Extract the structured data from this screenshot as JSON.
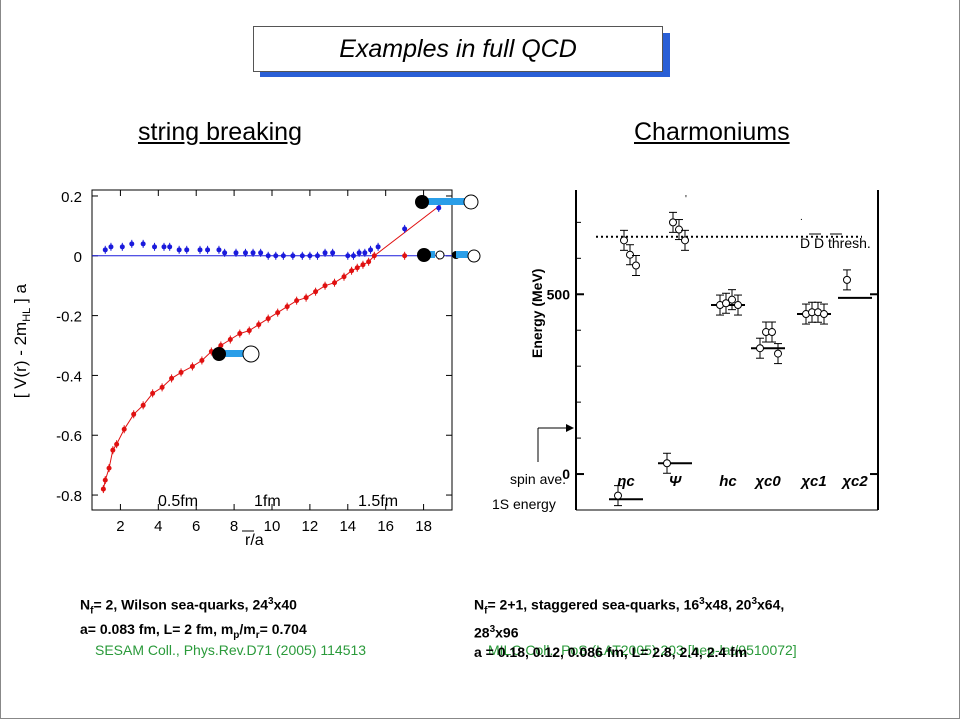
{
  "slide": {
    "title": "Examples in full QCD",
    "left_heading": "string breaking",
    "right_heading": "Charmoniums"
  },
  "left": {
    "ylabel": "[ V(r) - 2m",
    "ylabel_sub": "HL",
    "ylabel_end": " ] a",
    "xlabel": "r/a",
    "distance_marks": [
      "0.5fm",
      "1fm",
      "1.5fm"
    ],
    "note_line1_a": "N",
    "note_line1_sub": "f",
    "note_line1_b": "= 2, Wilson sea-quarks, 24",
    "note_line1_sup": "3",
    "note_line1_c": "x40",
    "note_line2_a": "a= 0.083 fm,  L= 2 fm, m",
    "note_line2_sub1": "p",
    "note_line2_b": "/m",
    "note_line2_sub2": "r",
    "note_line2_c": "= 0.704",
    "citation": "SESAM Coll., Phys.Rev.D71 (2005) 114513"
  },
  "right": {
    "ylabel": "Energy (MeV)",
    "threshold_label": "D D thresh.",
    "spin_ave_line1": "spin ave.",
    "spin_ave_line2": "1S energy",
    "note_line1_a": "N",
    "note_line1_sub": "f",
    "note_line1_b": "= 2+1, staggered sea-quarks, 16",
    "note_line1_sup1": "3",
    "note_line1_c": "x48, 20",
    "note_line1_sup2": "3",
    "note_line1_d": "x64,",
    "note_line2_a": "28",
    "note_line2_sup": "3",
    "note_line2_b": "x96",
    "note_line3": "a = 0.18, 0.12, 0.086 fm,  L= 2.8, 2.4, 2.4 fm",
    "citation": "MILC Coll., PoS (LAT2005) 203 [hep-lat/0510072]"
  },
  "chart_data": [
    {
      "type": "scatter",
      "title": "string breaking",
      "xlabel": "r/a",
      "ylabel": "[ V(r) - 2m_HL ] a",
      "xlim": [
        0.5,
        19.5
      ],
      "ylim": [
        -0.85,
        0.22
      ],
      "xticks": [
        2,
        4,
        6,
        8,
        10,
        12,
        14,
        16,
        18
      ],
      "yticks": [
        0.2,
        0,
        -0.2,
        -0.4,
        -0.6,
        -0.8
      ],
      "grid": false,
      "series": [
        {
          "color": "#1a1adc",
          "x": [
            1.2,
            1.5,
            2.1,
            2.6,
            3.2,
            3.8,
            4.3,
            4.6,
            5.1,
            5.5,
            6.2,
            6.6,
            7.2,
            7.5,
            8.1,
            8.6,
            9.0,
            9.4,
            9.8,
            10.2,
            10.6,
            11.1,
            11.6,
            12.0,
            12.4,
            12.8,
            13.2,
            14.0,
            14.3,
            14.6,
            14.9,
            15.2,
            15.6,
            17.0,
            18.8
          ],
          "y": [
            0.02,
            0.03,
            0.03,
            0.04,
            0.04,
            0.03,
            0.03,
            0.03,
            0.02,
            0.02,
            0.02,
            0.02,
            0.02,
            0.01,
            0.01,
            0.01,
            0.01,
            0.01,
            0.0,
            0.0,
            0.0,
            0.0,
            0.0,
            0.0,
            0.0,
            0.01,
            0.01,
            0.0,
            0.0,
            0.01,
            0.01,
            0.02,
            0.03,
            0.09,
            0.16
          ]
        },
        {
          "color": "#e01010",
          "x": [
            1.1,
            1.2,
            1.4,
            1.6,
            1.8,
            2.2,
            2.7,
            3.2,
            3.7,
            4.2,
            4.7,
            5.2,
            5.8,
            6.3,
            6.8,
            7.3,
            7.8,
            8.3,
            8.8,
            9.3,
            9.8,
            10.3,
            10.8,
            11.3,
            11.8,
            12.3,
            12.8,
            13.3,
            13.8,
            14.2,
            14.5,
            14.8,
            15.1,
            15.4,
            17.0,
            18.8
          ],
          "y": [
            -0.78,
            -0.75,
            -0.71,
            -0.65,
            -0.63,
            -0.58,
            -0.53,
            -0.5,
            -0.46,
            -0.44,
            -0.41,
            -0.39,
            -0.37,
            -0.35,
            -0.32,
            -0.3,
            -0.28,
            -0.26,
            -0.25,
            -0.23,
            -0.21,
            -0.19,
            -0.17,
            -0.15,
            -0.14,
            -0.12,
            -0.1,
            -0.09,
            -0.07,
            -0.05,
            -0.04,
            -0.03,
            -0.02,
            0.0,
            0.0,
            0.0
          ]
        }
      ]
    },
    {
      "type": "scatter",
      "title": "Charmoniums",
      "ylabel": "Energy (MeV)",
      "ylim": [
        -100,
        790
      ],
      "yticks": [
        0,
        500
      ],
      "categories": [
        "ηc",
        "Ψ",
        "hc",
        "χc0",
        "χc1",
        "χc2"
      ],
      "threshold_MeV": 660,
      "experiment_MeV": [
        -70,
        30,
        470,
        350,
        445,
        490
      ],
      "lattice_MeV": [
        [
          -60,
          650,
          610,
          580
        ],
        [
          30,
          700,
          680,
          650
        ],
        [
          470,
          475,
          485,
          470
        ],
        [
          350,
          395,
          395,
          335
        ],
        [
          445,
          450,
          450,
          445
        ],
        [
          540
        ]
      ]
    }
  ]
}
